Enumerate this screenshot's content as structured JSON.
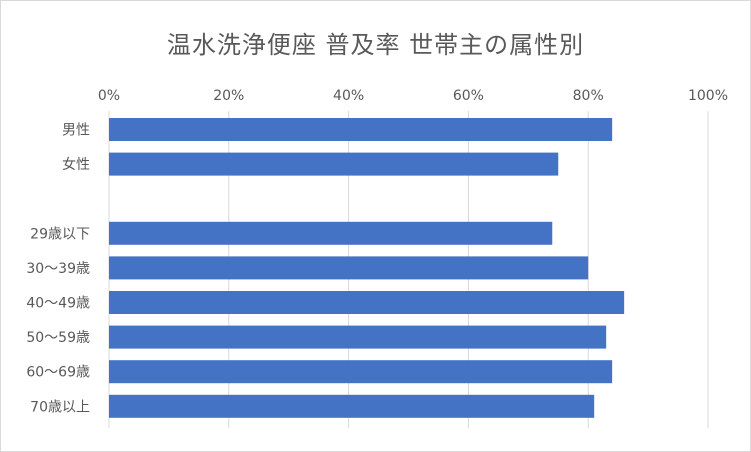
{
  "chart_data": {
    "type": "bar",
    "orientation": "horizontal",
    "title": "温水洗浄便座 普及率 世帯主の属性別",
    "xlabel": "",
    "ylabel": "",
    "xlim": [
      0,
      1
    ],
    "x_ticks": [
      "0%",
      "20%",
      "40%",
      "60%",
      "80%",
      "100%"
    ],
    "x_tick_values": [
      0,
      0.2,
      0.4,
      0.6,
      0.8,
      1.0
    ],
    "grid": true,
    "legend": "none",
    "bar_color": "#4472C4",
    "categories": [
      "男性",
      "女性",
      "",
      "29歳以下",
      "30〜39歳",
      "40〜49歳",
      "50〜59歳",
      "60〜69歳",
      "70歳以上"
    ],
    "values": [
      0.84,
      0.75,
      null,
      0.74,
      0.8,
      0.86,
      0.83,
      0.84,
      0.81
    ]
  }
}
